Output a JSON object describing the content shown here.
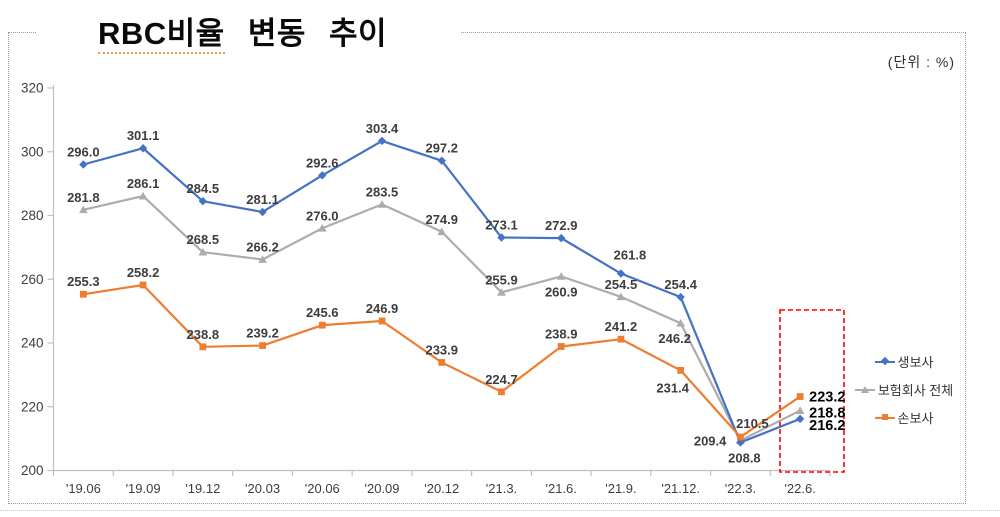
{
  "page": {
    "unit_label": "(단위 : %)"
  },
  "title": {
    "full": "RBC비율 변동 추이",
    "underlined": "RBC비율",
    "rest": "변동 추이"
  },
  "chart_data": {
    "type": "line",
    "title": "RBC비율 변동 추이",
    "unit": "%",
    "categories": [
      "'19.06",
      "'19.09",
      "'19.12",
      "'20.03",
      "'20.06",
      "'20.09",
      "'20.12",
      "'21.3.",
      "'21.6.",
      "'21.9.",
      "'21.12.",
      "'22.3.",
      "'22.6."
    ],
    "series": [
      {
        "name": "생보사",
        "color": "#4472C4",
        "marker": "diamond",
        "values": [
          296.0,
          301.1,
          284.5,
          281.1,
          292.6,
          303.4,
          297.2,
          273.1,
          272.9,
          261.8,
          254.4,
          208.8,
          216.2
        ]
      },
      {
        "name": "보험회사 전체",
        "color": "#ACACAC",
        "marker": "triangle",
        "values": [
          281.8,
          286.1,
          268.5,
          266.2,
          276.0,
          283.5,
          274.9,
          255.9,
          260.9,
          254.5,
          246.2,
          209.4,
          218.8
        ]
      },
      {
        "name": "손보사",
        "color": "#ED7D31",
        "marker": "square",
        "values": [
          255.3,
          258.2,
          238.8,
          239.2,
          245.6,
          246.9,
          233.9,
          224.7,
          238.9,
          241.2,
          231.4,
          210.5,
          223.2
        ]
      }
    ],
    "ylim": [
      200,
      320
    ],
    "yticks": [
      200,
      220,
      240,
      260,
      280,
      300,
      320
    ],
    "grid": false,
    "legend_position": "right",
    "data_labels": true,
    "emphasized_labels": [
      "223.2",
      "218.8",
      "216.2"
    ],
    "highlight": {
      "type": "dashed-box",
      "color": "#FF0000",
      "target_category": "'22.6."
    }
  }
}
